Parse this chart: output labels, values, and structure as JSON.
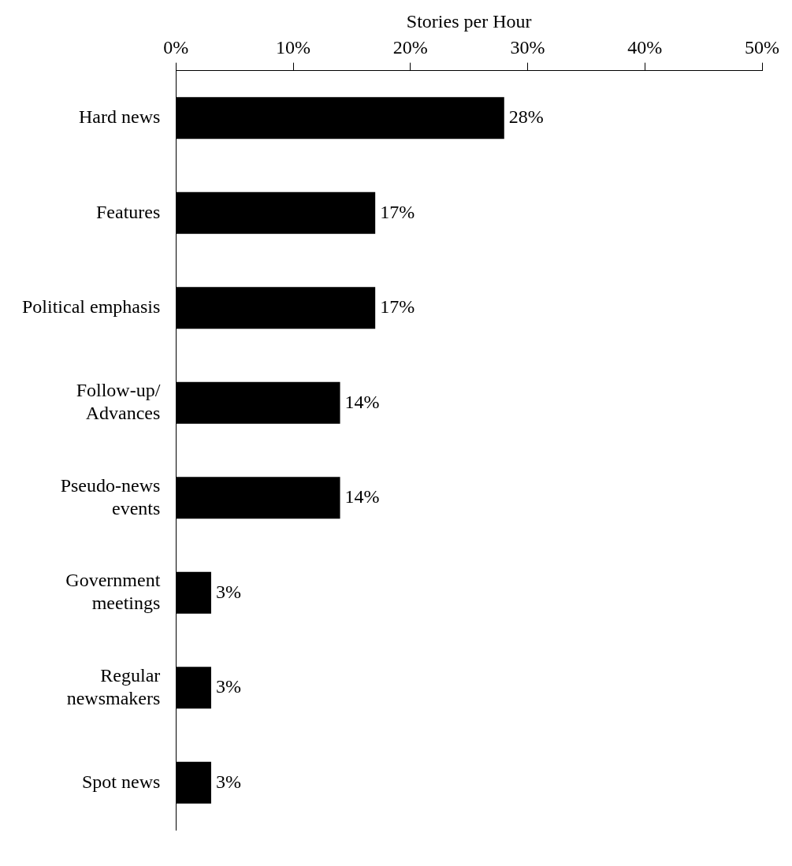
{
  "chart_data": {
    "type": "bar",
    "orientation": "horizontal",
    "xlabel": "Stories per Hour",
    "categories": [
      "Hard news",
      "Features",
      "Political emphasis",
      "Follow-up/\nAdvances",
      "Pseudo-news\nevents",
      "Government\nmeetings",
      "Regular\nnewsmakers",
      "Spot news"
    ],
    "values": [
      28,
      17,
      17,
      14,
      14,
      3,
      3,
      3
    ],
    "value_labels": [
      "28%",
      "17%",
      "17%",
      "14%",
      "14%",
      "3%",
      "3%",
      "3%"
    ],
    "color": "#000000",
    "xlim": [
      0,
      50
    ],
    "xticks": [
      {
        "value": 0,
        "label": "0%"
      },
      {
        "value": 10,
        "label": "10%"
      },
      {
        "value": 20,
        "label": "20%"
      },
      {
        "value": 30,
        "label": "30%"
      },
      {
        "value": 40,
        "label": "40%"
      },
      {
        "value": 50,
        "label": "50%"
      }
    ],
    "grid": false,
    "legend": false
  }
}
